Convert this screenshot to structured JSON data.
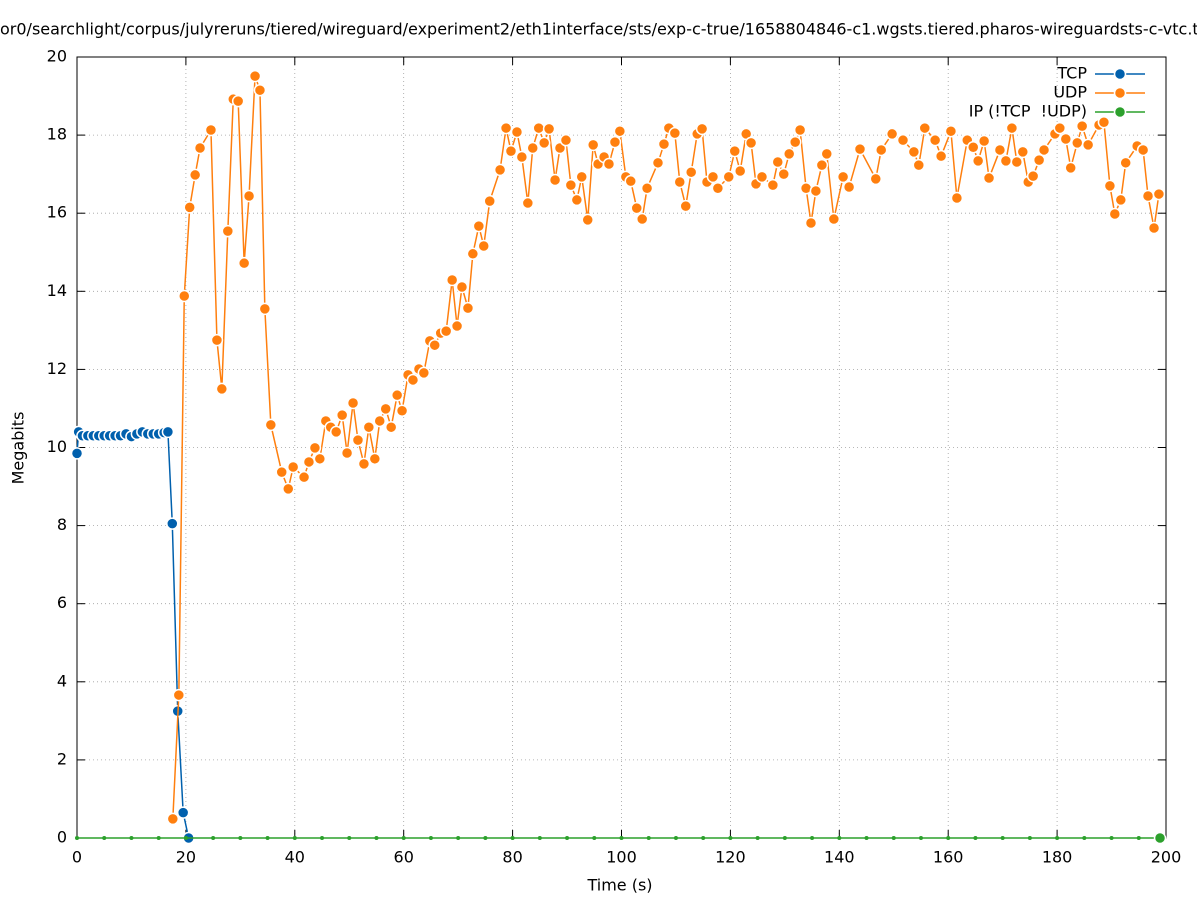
{
  "chart_data": {
    "type": "line",
    "title": "or0/searchlight/corpus/julyreruns/tiered/wireguard/experiment2/eth1interface/sts/exp-c-true/1658804846-c1.wgsts.tiered.pharos-wireguardsts-c-vtc.t",
    "x_label": "Time (s)",
    "y_label": "Megabits",
    "xlim": [
      0,
      200
    ],
    "xticks": [
      0,
      20,
      40,
      60,
      80,
      100,
      120,
      140,
      160,
      180,
      200
    ],
    "ylim": [
      0,
      20
    ],
    "yticks": [
      0,
      2,
      4,
      6,
      8,
      10,
      12,
      14,
      16,
      18,
      20
    ],
    "grid": true,
    "legend": "top-right",
    "series": [
      {
        "name": "TCP",
        "color": "#0060ad",
        "x": [
          0,
          0.3,
          1,
          2,
          3,
          4,
          5,
          6,
          7,
          8,
          9,
          10,
          11,
          12,
          13,
          14,
          15,
          16,
          16.7,
          17.5,
          18.5,
          19.5,
          20.5
        ],
        "values": [
          9.85,
          10.4,
          10.3,
          10.3,
          10.3,
          10.3,
          10.3,
          10.3,
          10.3,
          10.3,
          10.35,
          10.28,
          10.35,
          10.4,
          10.35,
          10.35,
          10.35,
          10.38,
          10.4,
          8.05,
          3.25,
          0.65,
          0
        ]
      },
      {
        "name": "UDP",
        "color": "#ff7f0e",
        "x": [
          17.6,
          18.7,
          19.7,
          20.7,
          21.7,
          22.6,
          24.6,
          25.7,
          26.6,
          27.7,
          28.7,
          29.6,
          30.7,
          31.6,
          32.7,
          33.6,
          34.5,
          35.6,
          37.6,
          38.8,
          39.7,
          41.7,
          42.6,
          43.7,
          44.6,
          45.7,
          46.6,
          47.6,
          48.7,
          49.6,
          50.7,
          51.6,
          52.7,
          53.6,
          54.7,
          55.6,
          56.7,
          57.7,
          58.8,
          59.7,
          60.8,
          61.7,
          62.8,
          63.7,
          64.8,
          65.7,
          66.8,
          67.8,
          68.9,
          69.8,
          70.7,
          71.8,
          72.7,
          73.8,
          74.7,
          75.8,
          77.7,
          78.8,
          79.7,
          80.8,
          81.7,
          82.8,
          83.7,
          84.8,
          85.8,
          86.7,
          87.8,
          88.7,
          89.8,
          90.7,
          91.8,
          92.7,
          93.8,
          94.8,
          95.7,
          96.8,
          97.7,
          98.8,
          99.7,
          100.8,
          101.7,
          102.8,
          103.8,
          104.7,
          106.7,
          107.8,
          108.7,
          109.8,
          110.7,
          111.8,
          112.8,
          113.9,
          114.8,
          115.7,
          116.8,
          117.7,
          119.7,
          120.8,
          121.8,
          122.9,
          123.8,
          124.7,
          125.8,
          127.8,
          128.7,
          129.8,
          130.8,
          131.9,
          132.8,
          133.9,
          134.8,
          135.7,
          136.8,
          137.7,
          139.0,
          140.7,
          141.8,
          143.8,
          146.7,
          147.7,
          149.7,
          151.7,
          153.7,
          154.6,
          155.7,
          157.6,
          158.7,
          160.5,
          161.6,
          163.5,
          164.6,
          165.5,
          166.6,
          167.5,
          169.5,
          170.6,
          171.7,
          172.6,
          173.7,
          174.7,
          175.6,
          176.7,
          177.6,
          179.6,
          180.5,
          181.6,
          182.5,
          183.7,
          184.6,
          185.7,
          187.7,
          188.6,
          189.7,
          190.6,
          191.7,
          192.6,
          194.7,
          195.8,
          196.7,
          197.8,
          198.7
        ],
        "values": [
          0.49,
          3.66,
          13.88,
          16.15,
          16.98,
          17.67,
          18.13,
          12.75,
          11.5,
          15.54,
          18.92,
          18.87,
          14.72,
          16.44,
          19.51,
          19.15,
          13.55,
          10.58,
          9.37,
          8.94,
          9.5,
          9.24,
          9.63,
          9.99,
          9.71,
          10.68,
          10.52,
          10.4,
          10.83,
          9.86,
          11.14,
          10.19,
          9.58,
          10.52,
          9.71,
          10.68,
          10.99,
          10.52,
          11.34,
          10.94,
          11.86,
          11.73,
          12.01,
          11.91,
          12.73,
          12.62,
          12.93,
          12.98,
          14.29,
          13.11,
          14.11,
          13.57,
          14.96,
          15.67,
          15.16,
          16.31,
          17.11,
          18.18,
          17.59,
          18.08,
          17.44,
          16.26,
          17.67,
          18.18,
          17.8,
          18.16,
          16.85,
          17.67,
          17.87,
          16.72,
          16.34,
          16.93,
          15.83,
          17.75,
          17.26,
          17.44,
          17.26,
          17.82,
          18.1,
          16.93,
          16.82,
          16.13,
          15.85,
          16.64,
          17.29,
          17.77,
          18.18,
          18.05,
          16.8,
          16.18,
          17.05,
          18.03,
          18.16,
          16.8,
          16.93,
          16.64,
          16.93,
          17.59,
          17.08,
          18.03,
          17.8,
          16.75,
          16.93,
          16.72,
          17.31,
          17.0,
          17.52,
          17.82,
          18.13,
          16.64,
          15.75,
          16.57,
          17.23,
          17.52,
          15.85,
          16.93,
          16.67,
          17.64,
          16.88,
          17.62,
          18.03,
          17.87,
          17.57,
          17.23,
          18.18,
          17.87,
          17.46,
          18.1,
          16.39,
          17.87,
          17.69,
          17.34,
          17.85,
          16.9,
          17.62,
          17.34,
          18.18,
          17.31,
          17.57,
          16.8,
          16.95,
          17.36,
          17.62,
          18.03,
          18.18,
          17.9,
          17.16,
          17.8,
          18.23,
          17.75,
          18.26,
          18.33,
          16.7,
          15.98,
          16.34,
          17.29,
          17.72,
          17.62,
          16.44,
          15.62,
          16.49
        ]
      },
      {
        "name": "IP (!TCP  !UDP)",
        "color": "#2ca02c",
        "x": [
          0,
          5,
          10,
          15,
          20,
          25,
          30,
          35,
          40,
          45,
          50,
          55,
          60,
          65,
          70,
          75,
          80,
          85,
          90,
          95,
          100,
          105,
          110,
          115,
          120,
          125,
          130,
          135,
          140,
          145,
          150,
          155,
          160,
          165,
          170,
          175,
          180,
          185,
          190,
          195,
          198.9
        ],
        "values": [
          0,
          0,
          0,
          0,
          0,
          0,
          0,
          0,
          0,
          0,
          0,
          0,
          0,
          0,
          0,
          0,
          0,
          0,
          0,
          0,
          0,
          0,
          0,
          0,
          0,
          0,
          0,
          0,
          0,
          0,
          0,
          0,
          0,
          0,
          0,
          0,
          0,
          0,
          0,
          0,
          0
        ]
      }
    ]
  }
}
